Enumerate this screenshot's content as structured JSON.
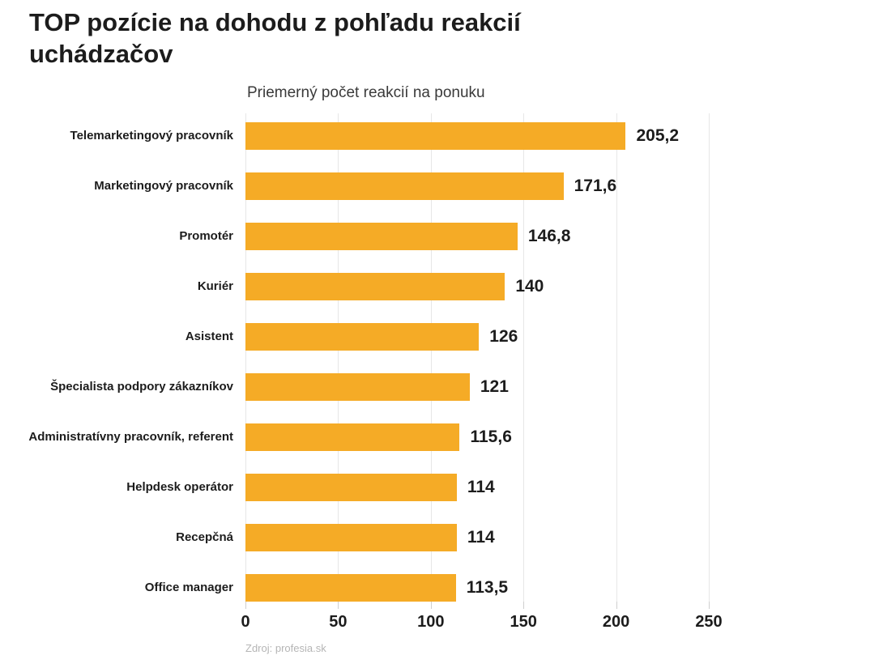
{
  "title": "TOP pozície na dohodu z pohľadu reakcií uchádzačov",
  "source": "Zdroj: profesia.sk",
  "colors": {
    "bar": "#F5AB26",
    "title_text": "#1c1c1c",
    "gridline": "#e7e7e7",
    "tick": "#cfcfcf",
    "source_text": "#b5b5b5"
  },
  "chart_data": {
    "type": "bar",
    "orientation": "horizontal",
    "title": "Priemerný počet reakcií na ponuku",
    "categories": [
      "Telemarketingový pracovník",
      "Marketingový pracovník",
      "Promotér",
      "Kuriér",
      "Asistent",
      "Špecialista podpory zákazníkov",
      "Administratívny pracovník, referent",
      "Helpdesk operátor",
      "Recepčná",
      "Office manager"
    ],
    "values": [
      205.2,
      171.6,
      146.8,
      140,
      126,
      121,
      115.6,
      114,
      114,
      113.5
    ],
    "value_labels": [
      "205,2",
      "171,6",
      "146,8",
      "140",
      "126",
      "121",
      "115,6",
      "114",
      "114",
      "113,5"
    ],
    "xlabel": "",
    "ylabel": "",
    "xlim": [
      0,
      250
    ],
    "x_ticks": [
      0,
      50,
      100,
      150,
      200,
      250
    ],
    "x_tick_labels": [
      "0",
      "50",
      "100",
      "150",
      "200",
      "250"
    ],
    "grid": true,
    "legend_position": "none",
    "bar_color": "#F5AB26"
  }
}
